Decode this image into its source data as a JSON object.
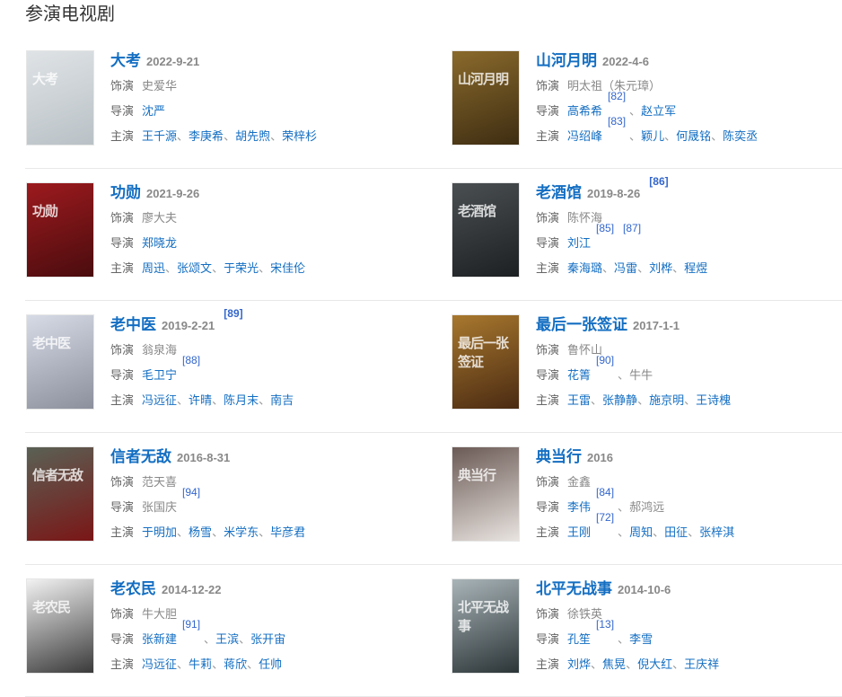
{
  "section_title": "参演电视剧",
  "labels": {
    "role": "饰演",
    "director": "导演",
    "cast": "主演",
    "separator": "、"
  },
  "shows": [
    {
      "title": "大考",
      "date": "2022-9-21",
      "poster_text": "大考",
      "poster_colors": [
        "#dfe3e6",
        "#b9c1c6"
      ],
      "role": "史爱华",
      "director": [
        {
          "name": "沈严",
          "linked": true
        }
      ],
      "cast": [
        {
          "name": "王千源",
          "linked": true
        },
        {
          "name": "李庚希",
          "linked": true
        },
        {
          "name": "胡先煦",
          "linked": true
        },
        {
          "name": "荣梓杉",
          "linked": true
        }
      ]
    },
    {
      "title": "山河月明",
      "date": "2022-4-6",
      "poster_text": "山河月明",
      "poster_colors": [
        "#8a6a2c",
        "#3e2d12"
      ],
      "role": "明太祖（朱元璋）",
      "director": [
        {
          "name": "高希希",
          "linked": true,
          "refs": [
            "[82]"
          ]
        },
        {
          "name": "赵立军",
          "linked": true
        }
      ],
      "cast": [
        {
          "name": "冯绍峰",
          "linked": true,
          "refs": [
            "[83]"
          ]
        },
        {
          "name": "颖儿",
          "linked": true
        },
        {
          "name": "何晟铭",
          "linked": true
        },
        {
          "name": "陈奕丞",
          "linked": true
        }
      ]
    },
    {
      "title": "功勋",
      "date": "2021-9-26",
      "poster_text": "功勋",
      "poster_colors": [
        "#9c1a1e",
        "#4a0c0e"
      ],
      "role": "廖大夫",
      "director": [
        {
          "name": "郑晓龙",
          "linked": true
        }
      ],
      "cast": [
        {
          "name": "周迅",
          "linked": true
        },
        {
          "name": "张颂文",
          "linked": true
        },
        {
          "name": "于荣光",
          "linked": true
        },
        {
          "name": "宋佳伦",
          "linked": true
        }
      ]
    },
    {
      "title": "老酒馆",
      "date": "2019-8-26",
      "title_refs": [
        "[86]"
      ],
      "poster_text": "老酒馆",
      "poster_colors": [
        "#4a4f52",
        "#1d2022"
      ],
      "role": "陈怀海",
      "director": [
        {
          "name": "刘江",
          "linked": true,
          "refs": [
            "[85]",
            "[87]"
          ]
        }
      ],
      "cast": [
        {
          "name": "秦海璐",
          "linked": true
        },
        {
          "name": "冯雷",
          "linked": true
        },
        {
          "name": "刘桦",
          "linked": true
        },
        {
          "name": "程煜",
          "linked": true
        }
      ]
    },
    {
      "title": "老中医",
      "date": "2019-2-21",
      "title_refs": [
        "[89]"
      ],
      "poster_text": "老中医",
      "poster_colors": [
        "#d6dbe6",
        "#8c8f9c"
      ],
      "role": "翁泉海",
      "director": [
        {
          "name": "毛卫宁",
          "linked": true,
          "refs": [
            "[88]"
          ]
        }
      ],
      "cast": [
        {
          "name": "冯远征",
          "linked": true
        },
        {
          "name": "许晴",
          "linked": true
        },
        {
          "name": "陈月末",
          "linked": true
        },
        {
          "name": "南吉",
          "linked": true
        }
      ]
    },
    {
      "title": "最后一张签证",
      "date": "2017-1-1",
      "poster_text": "最后一张签证",
      "poster_colors": [
        "#a8782e",
        "#4a2a12"
      ],
      "role": "鲁怀山",
      "director": [
        {
          "name": "花箐",
          "linked": true,
          "refs": [
            "[90]"
          ]
        },
        {
          "name": "牛牛",
          "linked": false
        }
      ],
      "cast": [
        {
          "name": "王雷",
          "linked": true
        },
        {
          "name": "张静静",
          "linked": true
        },
        {
          "name": "施京明",
          "linked": true
        },
        {
          "name": "王诗槐",
          "linked": true
        }
      ]
    },
    {
      "title": "信者无敌",
      "date": "2016-8-31",
      "poster_text": "信者无敌",
      "poster_colors": [
        "#5a6155",
        "#7a1616"
      ],
      "role": "范天喜",
      "director": [
        {
          "name": "张国庆",
          "linked": false,
          "refs": [
            "[94]"
          ]
        }
      ],
      "cast": [
        {
          "name": "于明加",
          "linked": true
        },
        {
          "name": "杨雪",
          "linked": true
        },
        {
          "name": "米学东",
          "linked": true
        },
        {
          "name": "毕彦君",
          "linked": true
        }
      ]
    },
    {
      "title": "典当行",
      "date": "2016",
      "poster_text": "典当行",
      "poster_colors": [
        "#6b5a55",
        "#e9e4e0"
      ],
      "role": "金鑫",
      "director": [
        {
          "name": "李伟",
          "linked": true,
          "refs": [
            "[84]"
          ]
        },
        {
          "name": "郝鸿远",
          "linked": false
        }
      ],
      "cast": [
        {
          "name": "王刚",
          "linked": true,
          "refs": [
            "[72]"
          ]
        },
        {
          "name": "周知",
          "linked": true
        },
        {
          "name": "田征",
          "linked": true
        },
        {
          "name": "张梓淇",
          "linked": true
        }
      ]
    },
    {
      "title": "老农民",
      "date": "2014-12-22",
      "poster_text": "老农民",
      "poster_colors": [
        "#f2f2f2",
        "#3a3a3a"
      ],
      "role": "牛大胆",
      "director": [
        {
          "name": "张新建",
          "linked": true,
          "refs": [
            "[91]"
          ]
        },
        {
          "name": "王滨",
          "linked": true
        },
        {
          "name": "张开宙",
          "linked": true
        }
      ],
      "cast": [
        {
          "name": "冯远征",
          "linked": true
        },
        {
          "name": "牛莉",
          "linked": true
        },
        {
          "name": "蒋欣",
          "linked": true
        },
        {
          "name": "任帅",
          "linked": true
        }
      ]
    },
    {
      "title": "北平无战事",
      "date": "2014-10-6",
      "poster_text": "北平无战事",
      "poster_colors": [
        "#a9b4b8",
        "#2b3538"
      ],
      "role": "徐铁英",
      "director": [
        {
          "name": "孔笙",
          "linked": true,
          "refs": [
            "[13]"
          ]
        },
        {
          "name": "李雪",
          "linked": true
        }
      ],
      "cast": [
        {
          "name": "刘烨",
          "linked": true
        },
        {
          "name": "焦晃",
          "linked": true
        },
        {
          "name": "倪大红",
          "linked": true
        },
        {
          "name": "王庆祥",
          "linked": true
        }
      ]
    }
  ]
}
